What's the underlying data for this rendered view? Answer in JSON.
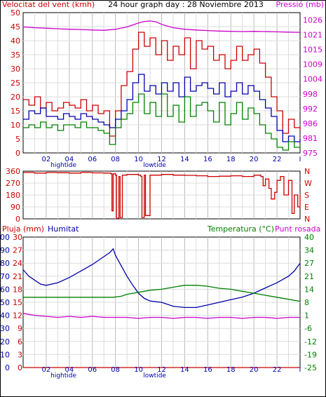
{
  "chart_data": [
    {
      "type": "line",
      "panel": "wind-pressure",
      "title": "24 hour graph day : 28 Noviembre 2013",
      "left_axis_label": "Velocitat del vent (kmh)",
      "right_axis_label": "Pressió (mb)",
      "left_ylim": [
        0,
        50
      ],
      "left_ticks": [
        "0",
        "5",
        "10",
        "15",
        "20",
        "25",
        "30",
        "35",
        "40",
        "45",
        "50"
      ],
      "right_ylim": [
        975,
        1029
      ],
      "right_ticks": [
        "975",
        "981",
        "986",
        "992",
        "998",
        "1004",
        "1009",
        "1015",
        "1021",
        "1026"
      ],
      "xlim": [
        0,
        24
      ],
      "x_tick_labels": [
        "02",
        "04",
        "06",
        "08",
        "10",
        "12",
        "14",
        "16",
        "18",
        "20",
        "22",
        "I"
      ],
      "x_annotations": [
        {
          "text": "hightide",
          "x": 3.5
        },
        {
          "text": "lowtide",
          "x": 11.4
        }
      ],
      "grid": true,
      "series": [
        {
          "name": "gust",
          "color": "#cc0000",
          "axis": "left",
          "x": [
            0,
            0.5,
            1,
            1.5,
            2,
            2.5,
            3,
            3.5,
            4,
            4.5,
            5,
            5.5,
            6,
            6.5,
            7,
            7.5,
            8,
            8.5,
            9,
            9.5,
            10,
            10.5,
            11,
            11.5,
            12,
            12.5,
            13,
            13.5,
            14,
            14.5,
            15,
            15.5,
            16,
            16.5,
            17,
            17.5,
            18,
            18.5,
            19,
            19.5,
            20,
            20.5,
            21,
            21.5,
            22,
            22.5,
            23,
            23.5,
            24
          ],
          "values": [
            19,
            17,
            20,
            16,
            18,
            15,
            16,
            18,
            17,
            16,
            19,
            15,
            17,
            14,
            15,
            6,
            15,
            24,
            29,
            37,
            43,
            38,
            41,
            35,
            40,
            33,
            38,
            35,
            41,
            30,
            40,
            37,
            38,
            33,
            35,
            30,
            33,
            38,
            33,
            35,
            37,
            32,
            27,
            20,
            15,
            7,
            12,
            9,
            8
          ]
        },
        {
          "name": "average",
          "color": "#0000aa",
          "axis": "left",
          "x": [
            0,
            0.5,
            1,
            1.5,
            2,
            2.5,
            3,
            3.5,
            4,
            4.5,
            5,
            5.5,
            6,
            6.5,
            7,
            7.5,
            8,
            8.5,
            9,
            9.5,
            10,
            10.5,
            11,
            11.5,
            12,
            12.5,
            13,
            13.5,
            14,
            14.5,
            15,
            15.5,
            16,
            16.5,
            17,
            17.5,
            18,
            18.5,
            19,
            19.5,
            20,
            20.5,
            21,
            21.5,
            22,
            22.5,
            23,
            23.5,
            24
          ],
          "values": [
            12,
            15,
            14,
            16,
            13,
            13,
            12,
            14,
            13,
            12,
            14,
            13,
            12,
            11,
            10,
            9,
            12,
            15,
            19,
            25,
            28,
            22,
            24,
            21,
            25,
            22,
            25,
            20,
            27,
            22,
            24,
            25,
            23,
            21,
            25,
            20,
            22,
            25,
            21,
            24,
            22,
            19,
            16,
            13,
            8,
            4,
            6,
            4,
            5
          ]
        },
        {
          "name": "wind",
          "color": "#008000",
          "axis": "left",
          "x": [
            0,
            0.5,
            1,
            1.5,
            2,
            2.5,
            3,
            3.5,
            4,
            4.5,
            5,
            5.5,
            6,
            6.5,
            7,
            7.5,
            8,
            8.5,
            9,
            9.5,
            10,
            10.5,
            11,
            11.5,
            12,
            12.5,
            13,
            13.5,
            14,
            14.5,
            15,
            15.5,
            16,
            16.5,
            17,
            17.5,
            18,
            18.5,
            19,
            19.5,
            20,
            20.5,
            21,
            21.5,
            22,
            22.5,
            23,
            23.5,
            24
          ],
          "values": [
            9,
            10,
            9,
            11,
            9,
            10,
            8,
            10,
            10,
            9,
            11,
            9,
            9,
            8,
            7,
            3,
            9,
            12,
            14,
            18,
            21,
            14,
            18,
            13,
            21,
            13,
            17,
            11,
            20,
            13,
            17,
            18,
            15,
            11,
            18,
            10,
            14,
            18,
            12,
            16,
            14,
            10,
            7,
            5,
            2,
            1,
            4,
            2,
            3
          ]
        },
        {
          "name": "pressure",
          "color": "#cc00cc",
          "axis": "right",
          "x": [
            0,
            1,
            2,
            3,
            4,
            5,
            6,
            7,
            8,
            9,
            10,
            10.5,
            11,
            11.5,
            12,
            13,
            14,
            15,
            16,
            17,
            18,
            19,
            20,
            21,
            22,
            23,
            24
          ],
          "values": [
            1023.5,
            1023.2,
            1023.0,
            1022.8,
            1022.6,
            1022.5,
            1022.3,
            1022.2,
            1022.6,
            1023.5,
            1025.0,
            1025.6,
            1025.8,
            1025.5,
            1024.5,
            1023.2,
            1022.6,
            1022.3,
            1022.1,
            1021.9,
            1021.8,
            1021.7,
            1021.8,
            1021.7,
            1021.6,
            1021.5,
            1021.4
          ]
        }
      ]
    },
    {
      "type": "line",
      "panel": "wind-direction",
      "left_ylim": [
        0,
        360
      ],
      "left_ticks": [
        "0",
        "90",
        "180",
        "270",
        "360"
      ],
      "right_labels": [
        "N",
        "W",
        "S",
        "E",
        "N"
      ],
      "xlim": [
        0,
        24
      ],
      "grid": true,
      "series": [
        {
          "name": "direction",
          "color": "#cc0000",
          "x": [
            0,
            1,
            2,
            3,
            4,
            5,
            6,
            7,
            7.6,
            7.7,
            7.8,
            8,
            8.1,
            8.3,
            8.4,
            8.6,
            9,
            10,
            10.2,
            10.3,
            10.5,
            10.6,
            11,
            12,
            13,
            14,
            15,
            16,
            17,
            18,
            19,
            20,
            20.6,
            20.8,
            21,
            21.3,
            21.5,
            21.8,
            22,
            22.3,
            22.6,
            23,
            23.3,
            23.5,
            23.8,
            24
          ],
          "values": [
            350,
            345,
            350,
            348,
            345,
            350,
            347,
            345,
            340,
            60,
            340,
            330,
            5,
            320,
            10,
            330,
            335,
            330,
            320,
            10,
            330,
            25,
            330,
            335,
            330,
            328,
            325,
            320,
            322,
            325,
            320,
            330,
            320,
            250,
            300,
            230,
            150,
            200,
            290,
            320,
            180,
            290,
            40,
            180,
            90,
            180
          ]
        }
      ]
    },
    {
      "type": "line",
      "panel": "rain-humidity-temperature",
      "left_axis_label_1": "Pluja (mm)",
      "left_axis_label_2": "Humitat",
      "right_axis_label_1": "Temperatura (°C)",
      "right_axis_label_2": "Punt rosada",
      "rain_ylim": [
        0,
        30
      ],
      "rain_ticks": [
        "0",
        "3",
        "6",
        "9",
        "12",
        "15",
        "18",
        "21",
        "24",
        "27",
        "30"
      ],
      "humidity_ylim": [
        0,
        100
      ],
      "humidity_ticks": [
        "0",
        "10",
        "20",
        "30",
        "40",
        "50",
        "60",
        "70",
        "80",
        "90",
        "100"
      ],
      "temperature_ylim": [
        -25,
        40
      ],
      "temperature_ticks": [
        "-25",
        "-19",
        "-12",
        "-6",
        "1",
        "8",
        "14",
        "21",
        "27",
        "34",
        "40"
      ],
      "xlim": [
        0,
        24
      ],
      "x_tick_labels": [
        "02",
        "04",
        "06",
        "08",
        "10",
        "12",
        "14",
        "16",
        "18",
        "20",
        "22",
        "I"
      ],
      "x_annotations": [
        {
          "text": "hightide",
          "x": 3.5
        },
        {
          "text": "lowtide",
          "x": 11.4
        }
      ],
      "grid": true,
      "series": [
        {
          "name": "Humitat",
          "color": "#0000aa",
          "axis": "humidity",
          "x": [
            0,
            0.5,
            1,
            1.5,
            2,
            3,
            4,
            5,
            6,
            7,
            7.5,
            7.8,
            8,
            8.5,
            9,
            9.5,
            10,
            10.5,
            11,
            12,
            13,
            14,
            15,
            16,
            17,
            18,
            19,
            20,
            21,
            22,
            23,
            23.5,
            24
          ],
          "values": [
            75,
            70,
            67,
            64,
            63,
            65,
            69,
            74,
            79,
            85,
            88,
            91,
            86,
            78,
            70,
            63,
            57,
            53,
            51,
            50,
            47,
            46,
            46,
            48,
            50,
            52,
            54,
            57,
            61,
            65,
            70,
            74,
            80
          ]
        },
        {
          "name": "Temperatura (°C)",
          "color": "#008000",
          "axis": "temperature",
          "x": [
            0,
            1,
            2,
            3,
            4,
            5,
            6,
            7,
            7.8,
            8.5,
            9,
            10,
            11,
            12,
            13,
            14,
            15,
            16,
            17,
            18,
            19,
            20,
            21,
            22,
            23,
            24
          ],
          "values": [
            10,
            10,
            10,
            10,
            10,
            10,
            10,
            10,
            10,
            10.5,
            11.5,
            12.5,
            13.5,
            14,
            15,
            16,
            16,
            15.5,
            14.5,
            14,
            13,
            12,
            11,
            10,
            9,
            8
          ]
        },
        {
          "name": "Punt rosada",
          "color": "#cc00cc",
          "axis": "temperature",
          "x": [
            0,
            1,
            2,
            3,
            4,
            5,
            6,
            7,
            8,
            9,
            10,
            11,
            12,
            13,
            14,
            15,
            16,
            17,
            18,
            19,
            20,
            21,
            22,
            23,
            24
          ],
          "values": [
            2,
            1,
            0.5,
            0,
            0.5,
            0,
            0.5,
            0,
            0,
            0,
            -0.5,
            0,
            0,
            -0.5,
            0,
            0,
            -0.5,
            0,
            0,
            -0.5,
            0,
            0,
            -0.5,
            0,
            0
          ]
        },
        {
          "name": "Pluja (mm)",
          "color": "#cc0000",
          "axis": "rain",
          "x": [
            0,
            24
          ],
          "values": [
            0,
            0
          ]
        }
      ]
    }
  ]
}
